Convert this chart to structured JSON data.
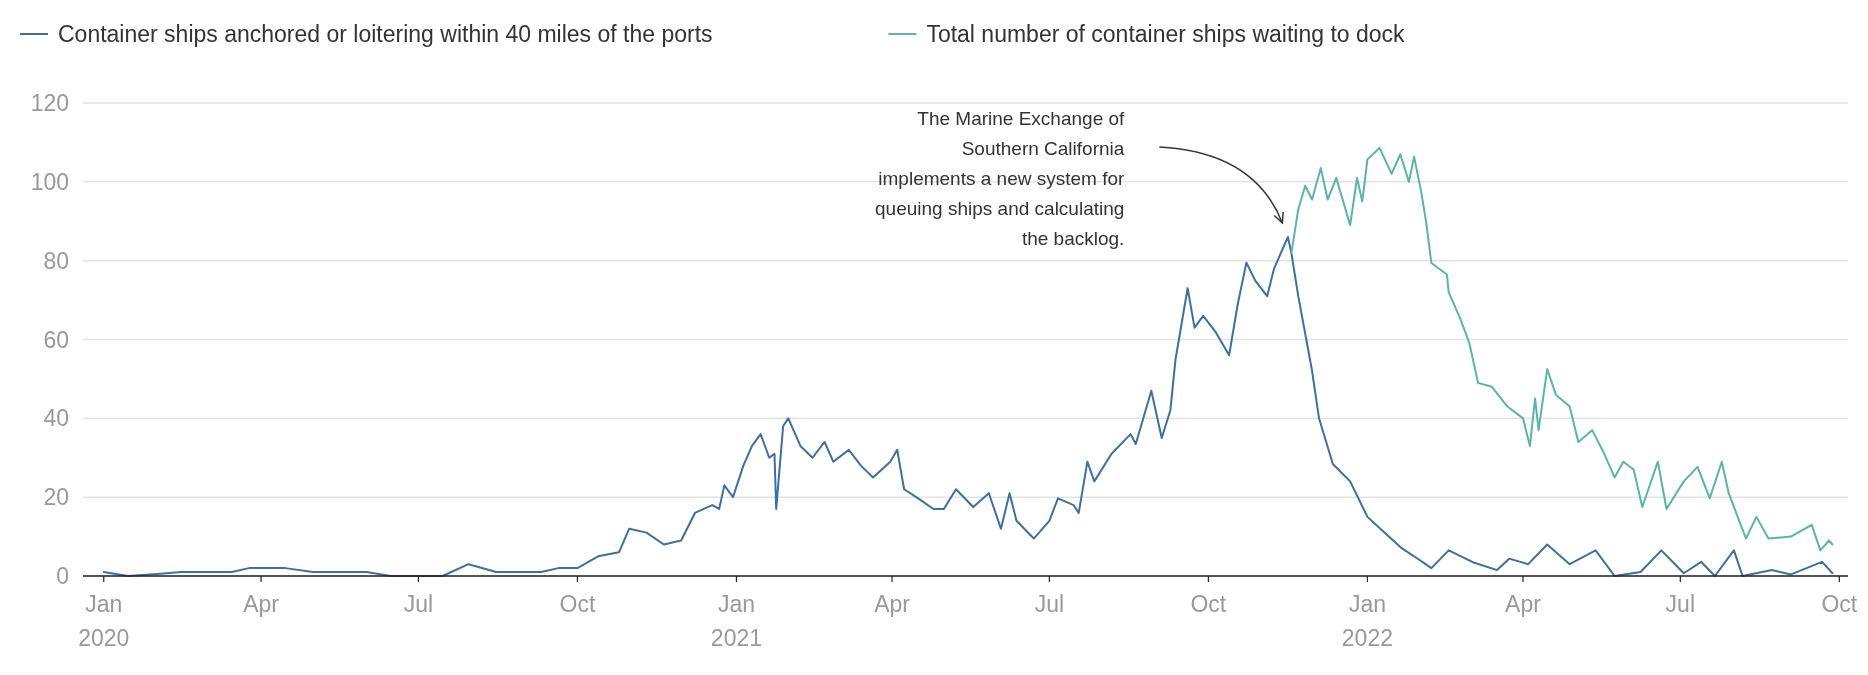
{
  "chart_data": {
    "type": "line",
    "legend": "top",
    "grid": "y",
    "line_style": "solid",
    "marker": "none",
    "xlim": [
      "2019-12-20",
      "2022-10-06"
    ],
    "xticks": [
      {
        "value": "2020-01-01",
        "label": "Jan 2020"
      },
      {
        "value": "2020-04-01",
        "label": "Apr"
      },
      {
        "value": "2020-07-01",
        "label": "Jul"
      },
      {
        "value": "2020-10-01",
        "label": "Oct"
      },
      {
        "value": "2021-01-01",
        "label": "Jan 2021"
      },
      {
        "value": "2021-04-01",
        "label": "Apr"
      },
      {
        "value": "2021-07-01",
        "label": "Jul"
      },
      {
        "value": "2021-10-01",
        "label": "Oct"
      },
      {
        "value": "2022-01-01",
        "label": "Jan 2022"
      },
      {
        "value": "2022-04-01",
        "label": "Apr"
      },
      {
        "value": "2022-07-01",
        "label": "Jul"
      },
      {
        "value": "2022-10-01",
        "label": "Oct"
      }
    ],
    "ylim": [
      0,
      120
    ],
    "yticks": [
      0,
      20,
      40,
      60,
      80,
      100,
      120
    ],
    "annotations": [
      "The Marine Exchange of Southern California implements a new system for queuing ships and calculating the backlog."
    ],
    "series": [
      {
        "name": "Container ships anchored or loitering within 40 miles of the ports",
        "color": "#3f6f9f",
        "x": [
          "2020-01-01",
          "2020-01-15",
          "2020-02-01",
          "2020-02-15",
          "2020-03-15",
          "2020-03-25",
          "2020-04-15",
          "2020-05-01",
          "2020-06-01",
          "2020-06-15",
          "2020-07-15",
          "2020-07-30",
          "2020-08-15",
          "2020-09-10",
          "2020-09-20",
          "2020-10-01",
          "2020-10-13",
          "2020-10-25",
          "2020-10-31",
          "2020-11-10",
          "2020-11-20",
          "2020-11-30",
          "2020-12-08",
          "2020-12-18",
          "2020-12-22",
          "2020-12-25",
          "2020-12-30",
          "2021-01-05",
          "2021-01-10",
          "2021-01-15",
          "2021-01-20",
          "2021-01-23",
          "2021-01-24",
          "2021-01-28",
          "2021-01-31",
          "2021-02-07",
          "2021-02-14",
          "2021-02-21",
          "2021-02-26",
          "2021-03-07",
          "2021-03-14",
          "2021-03-21",
          "2021-03-31",
          "2021-04-04",
          "2021-04-08",
          "2021-04-15",
          "2021-04-25",
          "2021-05-01",
          "2021-05-08",
          "2021-05-18",
          "2021-05-27",
          "2021-06-03",
          "2021-06-08",
          "2021-06-12",
          "2021-06-22",
          "2021-07-01",
          "2021-07-06",
          "2021-07-15",
          "2021-07-18",
          "2021-07-23",
          "2021-07-27",
          "2021-08-06",
          "2021-08-17",
          "2021-08-20",
          "2021-08-29",
          "2021-09-04",
          "2021-09-09",
          "2021-09-12",
          "2021-09-19",
          "2021-09-23",
          "2021-09-28",
          "2021-10-05",
          "2021-10-13",
          "2021-10-18",
          "2021-10-23",
          "2021-10-28",
          "2021-11-04",
          "2021-11-08",
          "2021-11-16",
          "2021-11-18",
          "2021-11-22",
          "2021-11-30",
          "2021-12-04",
          "2021-12-12",
          "2021-12-22",
          "2022-01-01",
          "2022-01-11",
          "2022-01-21",
          "2022-01-28",
          "2022-02-07",
          "2022-02-17",
          "2022-03-03",
          "2022-03-17",
          "2022-03-24",
          "2022-04-04",
          "2022-04-15",
          "2022-04-28",
          "2022-05-13",
          "2022-05-24",
          "2022-06-08",
          "2022-06-20",
          "2022-07-03",
          "2022-07-13",
          "2022-07-21",
          "2022-08-01",
          "2022-08-06",
          "2022-08-23",
          "2022-09-03",
          "2022-09-21",
          "2022-09-27"
        ],
        "values": [
          1,
          0,
          0.5,
          1,
          1,
          2,
          2,
          1,
          1,
          0,
          0,
          3,
          1,
          1,
          2,
          2,
          5,
          6,
          12,
          11,
          8,
          9,
          16,
          18,
          17,
          23,
          20,
          28,
          33,
          36,
          30,
          31,
          17,
          38,
          40,
          33,
          30,
          34,
          29,
          32,
          28,
          25,
          29,
          32,
          22,
          20,
          17,
          17,
          22,
          17.5,
          21,
          12,
          21,
          14,
          9.5,
          14,
          19.7,
          18,
          16,
          29,
          24,
          31,
          36,
          33.5,
          47,
          35,
          42,
          55,
          73,
          63,
          66,
          62,
          56,
          69,
          79.5,
          75,
          71,
          78,
          86,
          82,
          71,
          52,
          40,
          28.4,
          24,
          15,
          11,
          7,
          5,
          2,
          6.5,
          3.5,
          1.5,
          4.4,
          3,
          8,
          3,
          6.5,
          0,
          1,
          6.5,
          0.7,
          3.6,
          0,
          6.5,
          0,
          1.5,
          0.4,
          3.6,
          0.7
        ]
      },
      {
        "name": "Total number of container ships waiting to dock",
        "color": "#5bb5a2",
        "x": [
          "2021-11-18",
          "2021-11-22",
          "2021-11-26",
          "2021-11-30",
          "2021-12-05",
          "2021-12-09",
          "2021-12-14",
          "2021-12-22",
          "2021-12-26",
          "2021-12-29",
          "2022-01-01",
          "2022-01-08",
          "2022-01-15",
          "2022-01-20",
          "2022-01-25",
          "2022-01-28",
          "2022-02-01",
          "2022-02-04",
          "2022-02-07",
          "2022-02-16",
          "2022-02-17",
          "2022-02-24",
          "2022-03-01",
          "2022-03-06",
          "2022-03-14",
          "2022-03-23",
          "2022-04-01",
          "2022-04-05",
          "2022-04-08",
          "2022-04-10",
          "2022-04-15",
          "2022-04-20",
          "2022-04-28",
          "2022-05-03",
          "2022-05-11",
          "2022-05-18",
          "2022-05-24",
          "2022-05-29",
          "2022-06-04",
          "2022-06-09",
          "2022-06-18",
          "2022-06-23",
          "2022-07-03",
          "2022-07-11",
          "2022-07-18",
          "2022-07-25",
          "2022-07-29",
          "2022-08-08",
          "2022-08-14",
          "2022-08-21",
          "2022-09-03",
          "2022-09-15",
          "2022-09-20",
          "2022-09-25",
          "2022-09-27"
        ],
        "values": [
          82,
          93,
          99,
          95.5,
          103.5,
          95.5,
          101,
          89,
          101,
          95,
          105.7,
          108.6,
          102,
          107,
          100,
          106.4,
          97.7,
          89.7,
          79.4,
          76.5,
          72,
          65,
          59,
          49,
          48,
          43,
          40,
          33,
          45,
          37,
          52.5,
          46,
          43,
          34,
          37,
          31,
          25,
          29,
          27,
          17.5,
          29,
          17,
          24,
          27.7,
          19.7,
          29,
          21,
          9.5,
          15,
          9.5,
          10,
          13,
          6.5,
          9,
          8
        ]
      }
    ]
  }
}
